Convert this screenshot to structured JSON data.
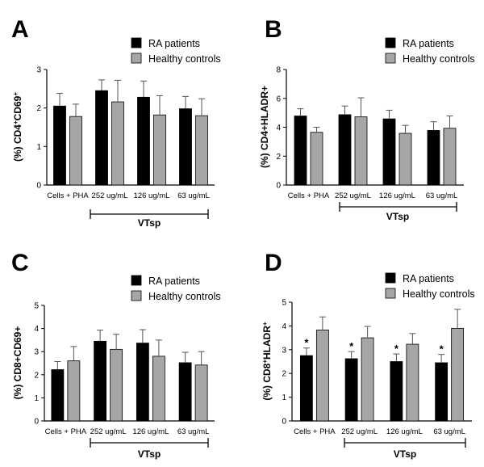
{
  "colors": {
    "ra": "#000000",
    "hc": "#a6a6a6"
  },
  "chart_data": [
    {
      "id": "A",
      "type": "bar",
      "panel_label": "A",
      "ylabel_prefix": "(%) CD4",
      "ylabel_sup1": "+",
      "ylabel_mid": "CD69",
      "ylabel_sup2": "+",
      "ylim": [
        0,
        3
      ],
      "yticks": [
        "0",
        "1",
        "2",
        "3"
      ],
      "categories": [
        "Cells + PHA",
        "252 ug/mL",
        "126 ug/mL",
        "63 ug/mL"
      ],
      "legend": [
        "RA patients",
        "Healthy controls"
      ],
      "bracket_label": "VTsp",
      "series": [
        {
          "name": "RA patients",
          "values": [
            2.05,
            2.45,
            2.28,
            1.98
          ],
          "errors": [
            0.33,
            0.28,
            0.42,
            0.32
          ],
          "stars": [
            "",
            "",
            "",
            ""
          ]
        },
        {
          "name": "Healthy controls",
          "values": [
            1.78,
            2.16,
            1.82,
            1.8
          ],
          "errors": [
            0.32,
            0.56,
            0.5,
            0.44
          ],
          "stars": [
            "",
            "",
            "",
            ""
          ]
        }
      ]
    },
    {
      "id": "B",
      "type": "bar",
      "panel_label": "B",
      "ylabel_prefix": "(%) CD4+HLADR+",
      "ylabel_sup1": "",
      "ylabel_mid": "",
      "ylabel_sup2": "",
      "ylim": [
        0,
        8
      ],
      "yticks": [
        "0",
        "2",
        "4",
        "6",
        "8"
      ],
      "categories": [
        "Cells + PHA",
        "252 ug/mL",
        "126 ug/mL",
        "63 ug/mL"
      ],
      "legend": [
        "RA patients",
        "Healthy controls"
      ],
      "bracket_label": "VTsp",
      "series": [
        {
          "name": "RA patients",
          "values": [
            4.78,
            4.87,
            4.58,
            3.78
          ],
          "errors": [
            0.5,
            0.6,
            0.6,
            0.6
          ],
          "stars": [
            "",
            "",
            "",
            ""
          ]
        },
        {
          "name": "Healthy controls",
          "values": [
            3.65,
            4.72,
            3.58,
            3.93
          ],
          "errors": [
            0.35,
            1.32,
            0.55,
            0.85
          ],
          "stars": [
            "",
            "",
            "",
            ""
          ]
        }
      ]
    },
    {
      "id": "C",
      "type": "bar",
      "panel_label": "C",
      "ylabel_prefix": "(%) CD8+CD69+",
      "ylabel_sup1": "",
      "ylabel_mid": "",
      "ylabel_sup2": "",
      "ylim": [
        0,
        5
      ],
      "yticks": [
        "0",
        "1",
        "2",
        "3",
        "4",
        "5"
      ],
      "categories": [
        "Cells + PHA",
        "252 ug/mL",
        "126 ug/mL",
        "63 ug/mL"
      ],
      "legend": [
        "RA patients",
        "Healthy controls"
      ],
      "bracket_label": "VTsp",
      "series": [
        {
          "name": "RA patients",
          "values": [
            2.22,
            3.45,
            3.37,
            2.52
          ],
          "errors": [
            0.35,
            0.48,
            0.58,
            0.45
          ],
          "stars": [
            "",
            "",
            "",
            ""
          ]
        },
        {
          "name": "Healthy controls",
          "values": [
            2.6,
            3.1,
            2.8,
            2.42
          ],
          "errors": [
            0.62,
            0.65,
            0.7,
            0.58
          ],
          "stars": [
            "",
            "",
            "",
            ""
          ]
        }
      ]
    },
    {
      "id": "D",
      "type": "bar",
      "panel_label": "D",
      "ylabel_prefix": "(%) CD8",
      "ylabel_sup1": "+",
      "ylabel_mid": "HLADR",
      "ylabel_sup2": "+",
      "ylim": [
        0,
        5
      ],
      "yticks": [
        "0",
        "1",
        "2",
        "3",
        "4",
        "5"
      ],
      "categories": [
        "Cells + PHA",
        "252 ug/mL",
        "126 ug/mL",
        "63 ug/mL"
      ],
      "legend": [
        "RA patients",
        "Healthy controls"
      ],
      "bracket_label": "VTsp",
      "series": [
        {
          "name": "RA patients",
          "values": [
            2.75,
            2.62,
            2.5,
            2.45
          ],
          "errors": [
            0.32,
            0.3,
            0.32,
            0.35
          ],
          "stars": [
            "*",
            "*",
            "*",
            "*"
          ]
        },
        {
          "name": "Healthy controls",
          "values": [
            3.83,
            3.5,
            3.23,
            3.9
          ],
          "errors": [
            0.55,
            0.48,
            0.45,
            0.8
          ],
          "stars": [
            "",
            "",
            "",
            ""
          ]
        }
      ]
    }
  ]
}
